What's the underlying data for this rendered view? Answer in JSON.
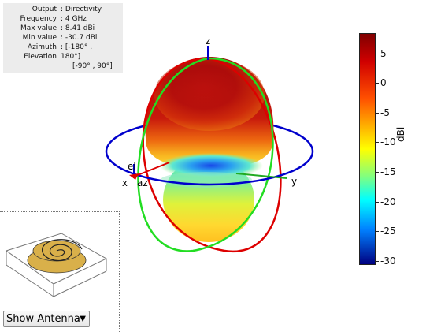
{
  "info": {
    "rows": [
      {
        "key": "Output",
        "value": ": Directivity"
      },
      {
        "key": "Frequency",
        "value": ": 4 GHz"
      },
      {
        "key": "Max value",
        "value": ": 8.41 dBi"
      },
      {
        "key": "Min value",
        "value": ": -30.7 dBi"
      },
      {
        "key": "Azimuth",
        "value": ": [-180° ,"
      },
      {
        "key": "Elevation",
        "value": "180°]"
      },
      {
        "key": "",
        "value": "[-90° , 90°]"
      }
    ]
  },
  "axes": {
    "x": "x",
    "y": "y",
    "z": "z",
    "el": "el",
    "az": "az"
  },
  "colorbar": {
    "unit": "dBi",
    "ticks": [
      "5",
      "0",
      "-5",
      "-10",
      "-15",
      "-20",
      "-25",
      "-30"
    ],
    "range": [
      -30.7,
      8.41
    ]
  },
  "colors": {
    "azimuth_circle": "#0000cc",
    "elevation_circle_red": "#dd0000",
    "elevation_circle_green": "#22dd22",
    "antenna": "#d9b04a"
  },
  "show_select": {
    "label": "Show Antenna",
    "arrow": "▼"
  }
}
